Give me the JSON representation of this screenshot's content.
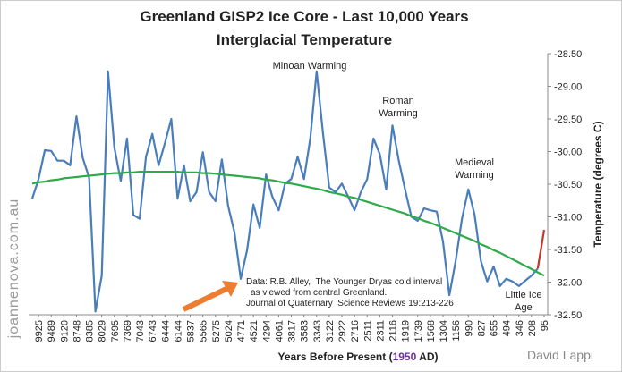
{
  "chart_data": {
    "type": "line",
    "title": "Greenland GISP2 Ice Core - Last 10,000 Years",
    "subtitle": "Interglacial Temperature",
    "x_label": {
      "before": "Years Before Present (",
      "year": "1950",
      "after": " AD)"
    },
    "y_label": "Temperature (degrees C)",
    "y_axis_side": "right",
    "grid": false,
    "categories": [
      null,
      "9925",
      null,
      "9489",
      null,
      "9120",
      null,
      "8748",
      null,
      "8385",
      null,
      "8029",
      null,
      "7695",
      null,
      "7369",
      null,
      "7043",
      null,
      "6743",
      null,
      "6444",
      null,
      "6144",
      null,
      "5837",
      null,
      "5565",
      null,
      "5275",
      null,
      "5024",
      null,
      "4771",
      null,
      "4521",
      null,
      "4294",
      null,
      "4061",
      null,
      "3817",
      null,
      "3583",
      null,
      "3343",
      null,
      "3122",
      null,
      "2922",
      null,
      "2716",
      null,
      "2511",
      null,
      "2311",
      null,
      "2116",
      null,
      "1919",
      null,
      "1739",
      null,
      "1568",
      null,
      "1304",
      null,
      "1156",
      null,
      "990",
      null,
      "827",
      null,
      "655",
      null,
      "494",
      null,
      "346",
      null,
      "208",
      null,
      "95"
    ],
    "series": [
      {
        "color": "#4a7ebb",
        "values": [
          -30.72,
          -30.42,
          -29.98,
          -29.99,
          -30.14,
          -30.14,
          -30.21,
          -29.46,
          -30.1,
          -30.4,
          -32.45,
          -31.9,
          -28.77,
          -29.94,
          -30.45,
          -29.8,
          -30.97,
          -31.03,
          -30.08,
          -29.73,
          -30.21,
          -29.87,
          -29.5,
          -30.72,
          -30.21,
          -30.76,
          -30.62,
          -30.01,
          -30.62,
          -30.76,
          -30.12,
          -30.83,
          -31.24,
          -31.95,
          -31.51,
          -30.81,
          -31.17,
          -30.35,
          -30.69,
          -30.9,
          -30.49,
          -30.42,
          -30.08,
          -30.42,
          -29.8,
          -28.77,
          -29.71,
          -30.55,
          -30.62,
          -30.49,
          -30.69,
          -30.9,
          -30.62,
          -30.42,
          -29.8,
          -30.04,
          -30.58,
          -29.6,
          -30.14,
          -30.58,
          -31.0,
          -31.06,
          -30.87,
          -30.9,
          -30.92,
          -31.38,
          -32.2,
          -31.68,
          -31.03,
          -30.58,
          -30.97,
          -31.68,
          -31.99,
          -31.76,
          -32.06,
          -31.95,
          -31.99,
          -32.06,
          -31.98,
          -31.9,
          -31.79,
          null
        ]
      },
      {
        "color": "#c0392b",
        "values": [
          null,
          null,
          null,
          null,
          null,
          null,
          null,
          null,
          null,
          null,
          null,
          null,
          null,
          null,
          null,
          null,
          null,
          null,
          null,
          null,
          null,
          null,
          null,
          null,
          null,
          null,
          null,
          null,
          null,
          null,
          null,
          null,
          null,
          null,
          null,
          null,
          null,
          null,
          null,
          null,
          null,
          null,
          null,
          null,
          null,
          null,
          null,
          null,
          null,
          null,
          null,
          null,
          null,
          null,
          null,
          null,
          null,
          null,
          null,
          null,
          null,
          null,
          null,
          null,
          null,
          null,
          null,
          null,
          null,
          null,
          null,
          null,
          null,
          null,
          null,
          null,
          null,
          null,
          null,
          null,
          -31.79,
          -31.2
        ]
      },
      {
        "color": "#2eaa4a",
        "values": [
          -30.49,
          -30.47,
          -30.46,
          -30.44,
          -30.43,
          -30.41,
          -30.4,
          -30.39,
          -30.38,
          -30.37,
          -30.36,
          -30.35,
          -30.34,
          -30.33,
          -30.33,
          -30.32,
          -30.32,
          -30.31,
          -30.31,
          -30.31,
          -30.31,
          -30.31,
          -30.31,
          -30.31,
          -30.32,
          -30.32,
          -30.32,
          -30.33,
          -30.33,
          -30.34,
          -30.35,
          -30.36,
          -30.37,
          -30.38,
          -30.39,
          -30.4,
          -30.41,
          -30.43,
          -30.44,
          -30.46,
          -30.48,
          -30.49,
          -30.51,
          -30.53,
          -30.55,
          -30.57,
          -30.59,
          -30.62,
          -30.64,
          -30.66,
          -30.69,
          -30.71,
          -30.74,
          -30.77,
          -30.8,
          -30.83,
          -30.86,
          -30.89,
          -30.92,
          -30.95,
          -30.99,
          -31.02,
          -31.06,
          -31.09,
          -31.13,
          -31.17,
          -31.21,
          -31.25,
          -31.29,
          -31.33,
          -31.37,
          -31.42,
          -31.46,
          -31.51,
          -31.55,
          -31.6,
          -31.65,
          -31.7,
          -31.75,
          -31.8,
          -31.85,
          -31.9
        ]
      }
    ],
    "ylim": [
      -32.5,
      -28.5
    ],
    "yticks": [
      {
        "value": -28.5,
        "label": "-28.50"
      },
      {
        "value": -29,
        "label": "-29.00"
      },
      {
        "value": -29.5,
        "label": "-29.50"
      },
      {
        "value": -30,
        "label": "-30.00"
      },
      {
        "value": -30.5,
        "label": "-30.50"
      },
      {
        "value": -31,
        "label": "-31.00"
      },
      {
        "value": -31.5,
        "label": "-31.50"
      },
      {
        "value": -32,
        "label": "-32.00"
      },
      {
        "value": -32.5,
        "label": "-32.50"
      }
    ],
    "annotations": [
      {
        "lines": [
          "Minoan Warming"
        ]
      },
      {
        "lines": [
          "Roman",
          "Warming"
        ]
      },
      {
        "lines": [
          "Medieval",
          "Warming"
        ]
      },
      {
        "lines": [
          "Little Ice",
          "Age"
        ]
      }
    ],
    "source_note": [
      "Data: R.B. Alley,  The Younger Dryas cold interval",
      "as viewed from central Greenland.",
      "Journal of Quaternary  Science Reviews 19:213-226"
    ],
    "watermark": "joannenova.com.au",
    "credit": "David Lappi"
  }
}
